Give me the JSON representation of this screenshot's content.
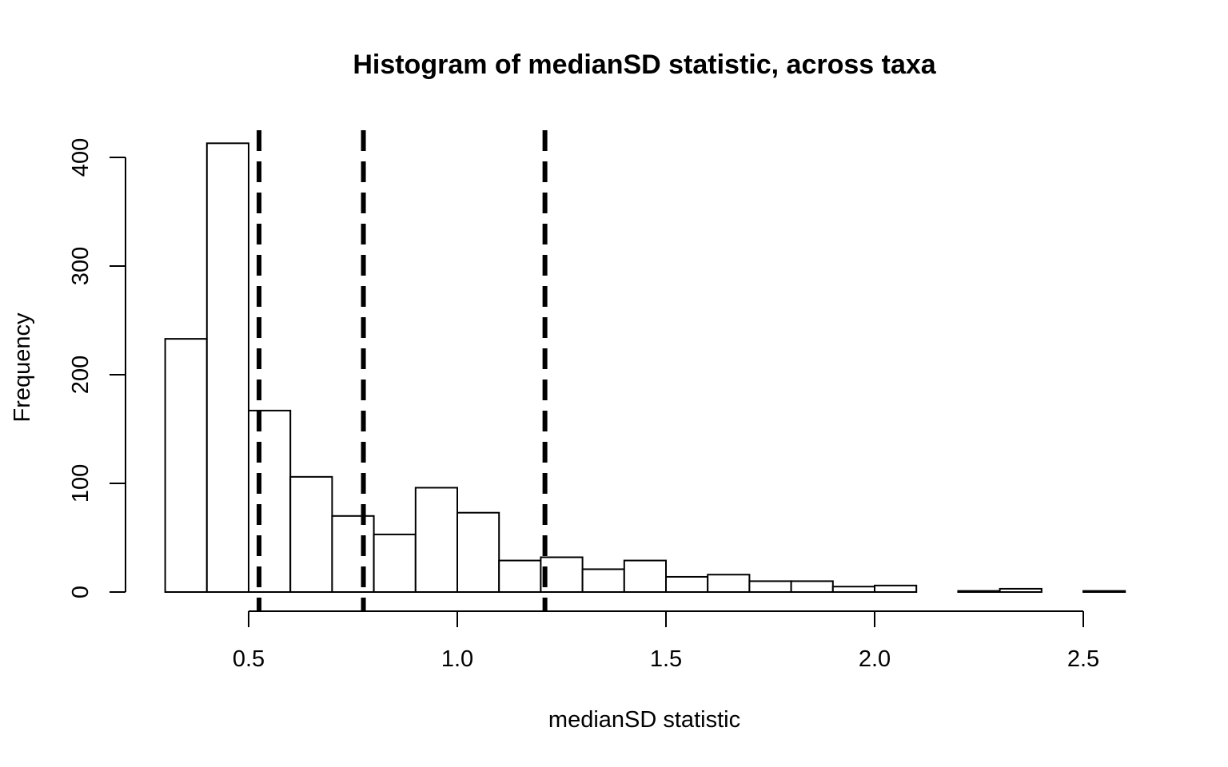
{
  "chart_data": {
    "type": "bar",
    "title": "Histogram of medianSD statistic, across taxa",
    "xlabel": "medianSD statistic",
    "ylabel": "Frequency",
    "xlim": [
      0.2,
      2.7
    ],
    "ylim": [
      0,
      430
    ],
    "x_ticks": [
      0.5,
      1.0,
      1.5,
      2.0,
      2.5
    ],
    "x_tick_labels": [
      "0.5",
      "1.0",
      "1.5",
      "2.0",
      "2.5"
    ],
    "y_ticks": [
      0,
      100,
      200,
      300,
      400
    ],
    "y_tick_labels": [
      "0",
      "100",
      "200",
      "300",
      "400"
    ],
    "bin_edges": [
      0.3,
      0.4,
      0.5,
      0.6,
      0.7,
      0.8,
      0.9,
      1.0,
      1.1,
      1.2,
      1.3,
      1.4,
      1.5,
      1.6,
      1.7,
      1.8,
      1.9,
      2.0,
      2.1,
      2.2,
      2.3,
      2.4,
      2.5,
      2.6
    ],
    "counts": [
      233,
      413,
      167,
      106,
      70,
      53,
      96,
      73,
      29,
      32,
      21,
      29,
      14,
      16,
      10,
      10,
      5,
      6,
      0,
      1,
      3,
      0,
      1
    ],
    "vertical_lines": [
      0.525,
      0.775,
      1.21
    ],
    "grid": false,
    "legend": "none"
  }
}
